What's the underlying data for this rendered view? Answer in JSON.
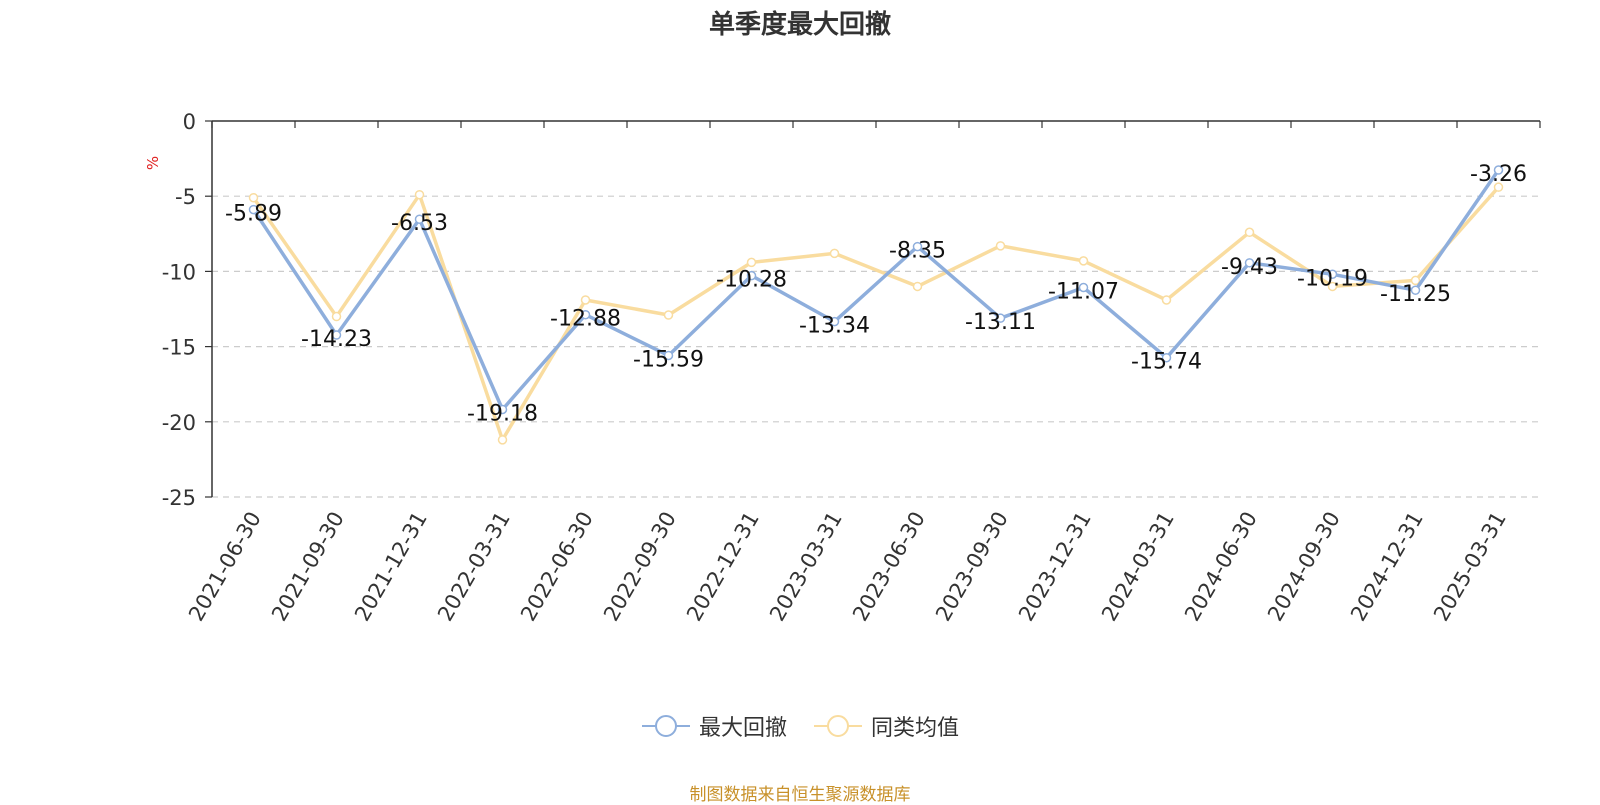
{
  "chart_data": {
    "type": "line",
    "title": "单季度最大回撤",
    "ylabel": "%",
    "ylim": [
      -25,
      0
    ],
    "yticks": [
      "0",
      "-5",
      "-10",
      "-15",
      "-20",
      "-25"
    ],
    "grid": true,
    "legend_position": "bottom",
    "categories": [
      "2021-06-30",
      "2021-09-30",
      "2021-12-31",
      "2022-03-31",
      "2022-06-30",
      "2022-09-30",
      "2022-12-31",
      "2023-03-31",
      "2023-06-30",
      "2023-09-30",
      "2023-12-31",
      "2024-03-31",
      "2024-06-30",
      "2024-09-30",
      "2024-12-31",
      "2025-03-31"
    ],
    "series": [
      {
        "name": "最大回撤",
        "color": "#8eaedc",
        "values": [
          -5.89,
          -14.23,
          -6.53,
          -19.18,
          -12.88,
          -15.59,
          -10.28,
          -13.34,
          -8.35,
          -13.11,
          -11.07,
          -15.74,
          -9.43,
          -10.19,
          -11.25,
          -3.26
        ],
        "labels": [
          "-5.89",
          "-14.23",
          "-6.53",
          "-19.18",
          "-12.88",
          "-15.59",
          "-10.28",
          "-13.34",
          "-8.35",
          "-13.11",
          "-11.07",
          "-15.74",
          "-9.43",
          "-10.19",
          "-11.25",
          "-3.26"
        ]
      },
      {
        "name": "同类均值",
        "color": "#f9dc9f",
        "values": [
          -5.1,
          -13.0,
          -4.9,
          -21.2,
          -11.9,
          -12.9,
          -9.4,
          -8.8,
          -11.0,
          -8.3,
          -9.3,
          -11.9,
          -7.4,
          -11.0,
          -10.6,
          -4.4
        ]
      }
    ],
    "source": "制图数据来自恒生聚源数据库",
    "source_color": "#c8912a",
    "ylabel_color": "#e02020"
  }
}
